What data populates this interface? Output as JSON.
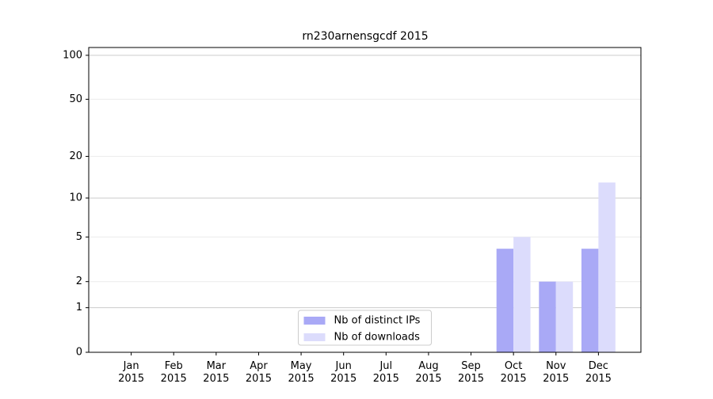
{
  "chart_data": {
    "type": "bar",
    "title": "rn230arnensgcdf 2015",
    "categories": [
      "Jan 2015",
      "Feb 2015",
      "Mar 2015",
      "Apr 2015",
      "May 2015",
      "Jun 2015",
      "Jul 2015",
      "Aug 2015",
      "Sep 2015",
      "Oct 2015",
      "Nov 2015",
      "Dec 2015"
    ],
    "series": [
      {
        "name": "Nb of distinct IPs",
        "color": "#a9a9f6",
        "values": [
          0,
          0,
          0,
          0,
          0,
          0,
          0,
          0,
          0,
          4,
          2,
          4
        ]
      },
      {
        "name": "Nb of downloads",
        "color": "#dcdcfc",
        "values": [
          0,
          0,
          0,
          0,
          0,
          0,
          0,
          0,
          0,
          5,
          2,
          13
        ]
      }
    ],
    "yscale": "log1p",
    "ylim": [
      0,
      113
    ],
    "yticks": [
      0,
      1,
      2,
      5,
      10,
      20,
      50,
      100
    ],
    "grid": true,
    "legend": "lower center"
  }
}
